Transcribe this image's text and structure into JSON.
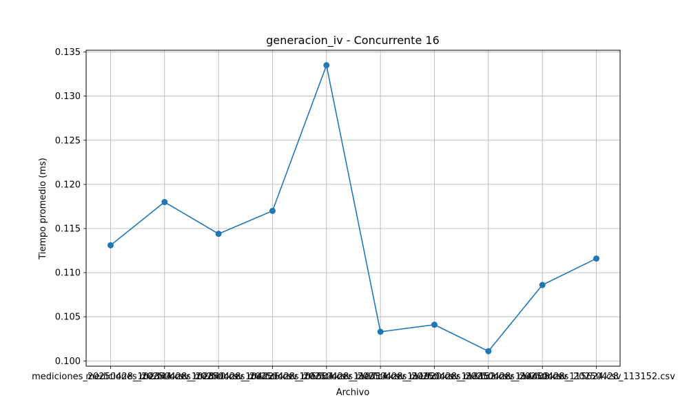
{
  "chart_data": {
    "type": "line",
    "title": "generacion_iv - Concurrente 16",
    "xlabel": "Archivo",
    "ylabel": "Tiempo promedio (ms)",
    "categories": [
      "mediciones_20250428_102344.csv",
      "mediciones_20250428_102840.csv",
      "mediciones_20250428_104226.csv",
      "mediciones_20250428_105504.csv",
      "mediciones_20250428_110714.csv",
      "mediciones_20250428_111920.csv",
      "mediciones_20250428_113152.csv",
      "mediciones_20250428_114408.csv",
      "mediciones_20250428_115624.csv",
      "mediciones_20250428_113152.csv"
    ],
    "series": [
      {
        "color": "#1f77b4",
        "values": [
          0.1131,
          0.118,
          0.1144,
          0.117,
          0.1335,
          0.1033,
          0.1041,
          0.1011,
          0.1086,
          0.1116
        ]
      }
    ],
    "ylim": [
      0.0994,
      0.1352
    ],
    "yticks": [
      "0.100",
      "0.105",
      "0.110",
      "0.115",
      "0.120",
      "0.125",
      "0.130",
      "0.135"
    ],
    "ytick_values": [
      0.1,
      0.105,
      0.11,
      0.115,
      0.12,
      0.125,
      0.13,
      0.135
    ],
    "grid": true
  }
}
